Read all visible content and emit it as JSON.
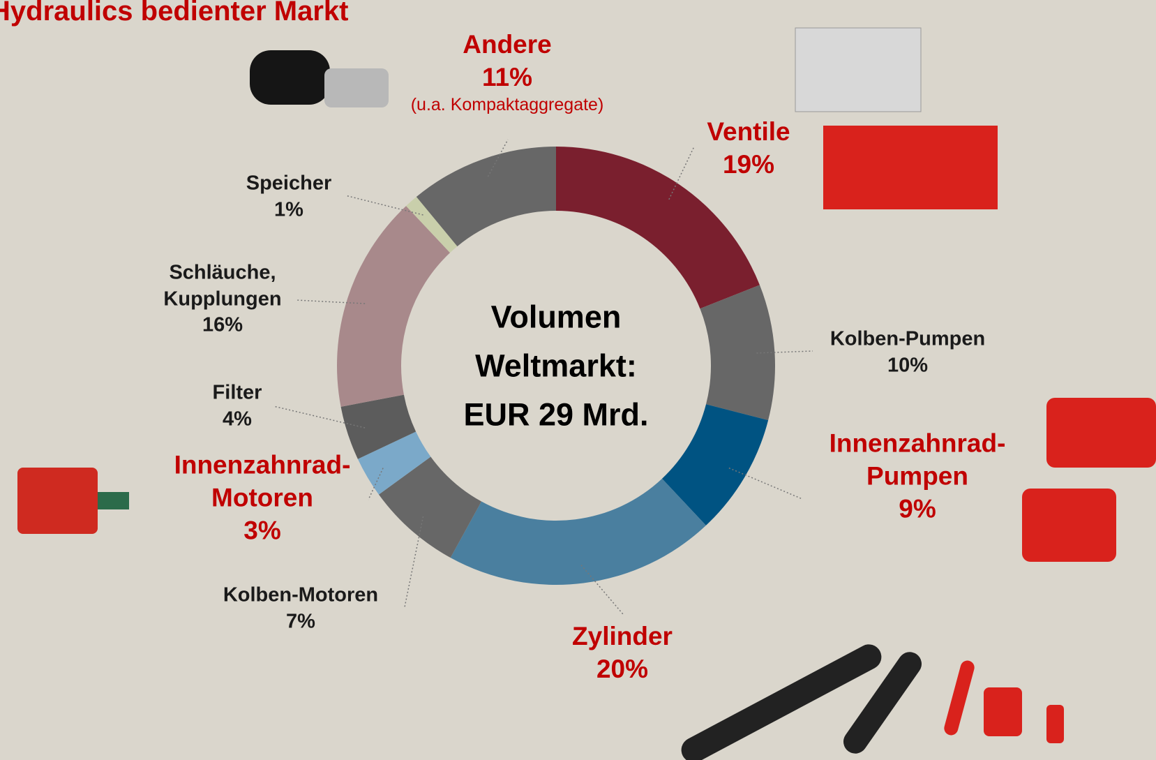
{
  "chart_data": {
    "type": "donut",
    "title": "Hydraulics bedienter Markt",
    "center_label": [
      "Volumen",
      "Weltmarkt:",
      "EUR 29 Mrd."
    ],
    "categories": [
      "Ventile",
      "Kolben-Pumpen",
      "Innenzahnrad-Pumpen",
      "Zylinder",
      "Kolben-Motoren",
      "Innenzahnrad-Motoren",
      "Filter",
      "Schläuche, Kupplungen",
      "Speicher",
      "Andere"
    ],
    "values": [
      19,
      10,
      9,
      20,
      7,
      3,
      4,
      16,
      1,
      11
    ],
    "value_labels": [
      "19%",
      "10%",
      "9%",
      "20%",
      "7%",
      "3%",
      "4%",
      "16%",
      "1%",
      "11%"
    ],
    "colors": [
      "#7a1f2e",
      "#676767",
      "#005382",
      "#4a7f9f",
      "#676767",
      "#7ba9c9",
      "#5c5c5c",
      "#a8898b",
      "#c9cfab",
      "#676767"
    ],
    "label_colors": [
      "#c00000",
      "#1a1a1a",
      "#c00000",
      "#c00000",
      "#1a1a1a",
      "#c00000",
      "#1a1a1a",
      "#1a1a1a",
      "#1a1a1a",
      "#c00000"
    ],
    "annotations": [
      {
        "category": "Andere",
        "text": "(u.a. Kompaktaggregate)"
      }
    ]
  }
}
